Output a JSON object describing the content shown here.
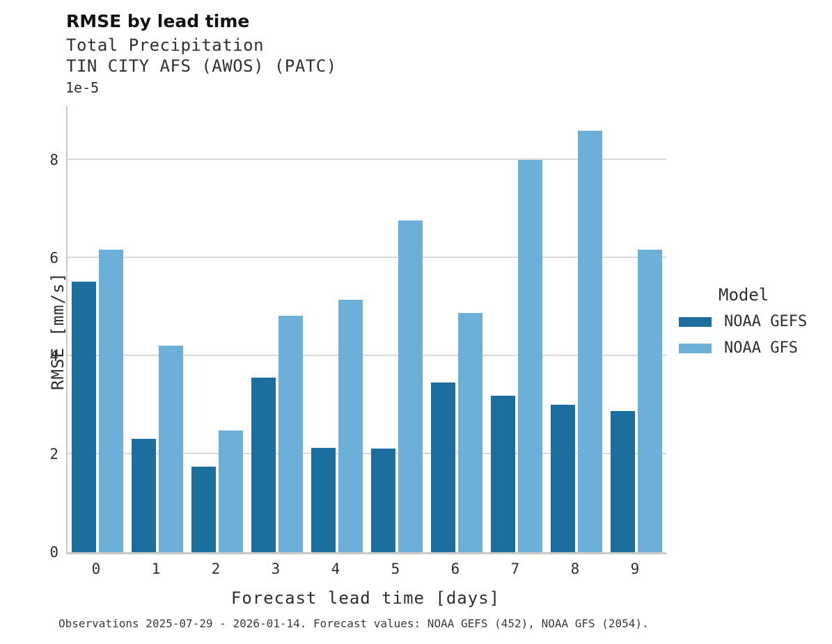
{
  "header": {
    "title": "RMSE by lead time",
    "subtitle1": "Total Precipitation",
    "subtitle2": "TIN CITY AFS (AWOS) (PATC)"
  },
  "legend": {
    "title": "Model",
    "entries": [
      {
        "label": "NOAA GEFS",
        "color": "#1c6e9e"
      },
      {
        "label": "NOAA GFS",
        "color": "#6cb0d9"
      }
    ]
  },
  "footer": {
    "caption": "Observations 2025-07-29 - 2026-01-14. Forecast values: NOAA GEFS (452), NOAA GFS (2054)."
  },
  "chart_data": {
    "type": "bar",
    "title": "RMSE by lead time",
    "subtitle": "Total Precipitation — TIN CITY AFS (AWOS) (PATC)",
    "xlabel": "Forecast lead time [days]",
    "ylabel": "RMSE [mm/s]",
    "offset_text": "1e-5",
    "value_multiplier": 1e-05,
    "categories": [
      "0",
      "1",
      "2",
      "3",
      "4",
      "5",
      "6",
      "7",
      "8",
      "9"
    ],
    "series": [
      {
        "name": "NOAA GEFS",
        "color": "#1c6e9e",
        "values": [
          5.52,
          2.32,
          1.75,
          3.57,
          2.13,
          2.12,
          3.47,
          3.19,
          3.01,
          2.88
        ]
      },
      {
        "name": "NOAA GFS",
        "color": "#6cb0d9",
        "values": [
          6.18,
          4.21,
          2.49,
          4.83,
          5.15,
          6.77,
          4.89,
          8.01,
          8.61,
          6.18
        ]
      }
    ],
    "yticks": [
      0,
      2,
      4,
      6,
      8
    ],
    "ylim": [
      0,
      9.1
    ],
    "grid": "horizontal",
    "legend_position": "right"
  }
}
